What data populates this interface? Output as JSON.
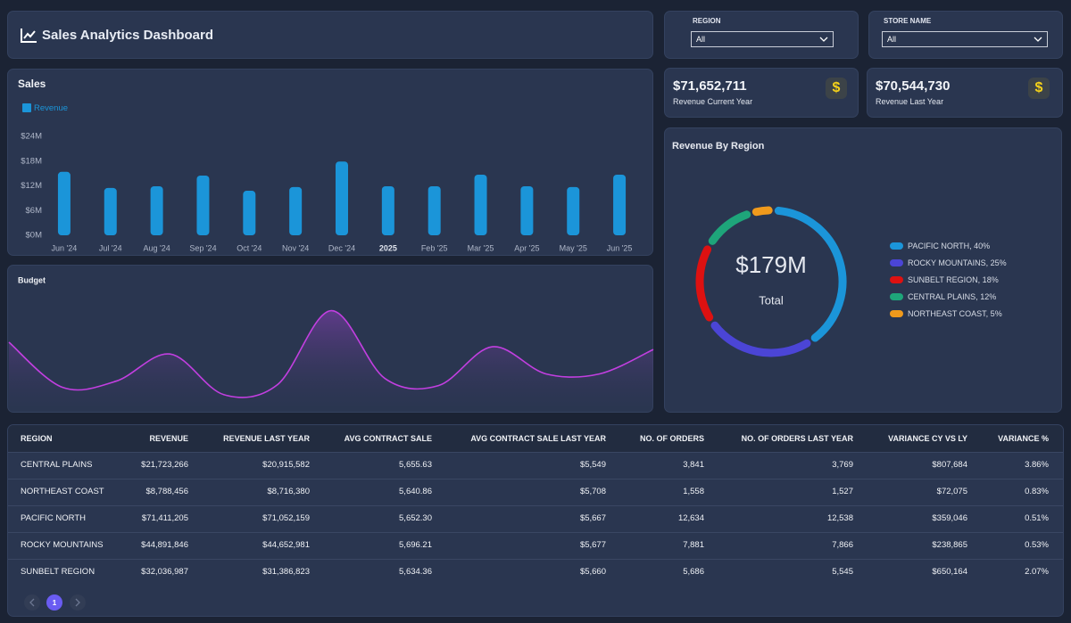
{
  "header": {
    "title": "Sales Analytics Dashboard"
  },
  "filters": [
    {
      "label": "REGION",
      "value": "All"
    },
    {
      "label": "STORE NAME",
      "value": "All"
    }
  ],
  "kpis": [
    {
      "value": "$71,652,711",
      "label": "Revenue Current Year",
      "icon": "$"
    },
    {
      "value": "$70,544,730",
      "label": "Revenue Last Year",
      "icon": "$"
    }
  ],
  "chart_data": [
    {
      "type": "bar",
      "title": "Sales",
      "categories": [
        "Jun '24",
        "Jul '24",
        "Aug '24",
        "Sep '24",
        "Oct '24",
        "Nov '24",
        "Dec '24",
        "2025",
        "Feb '25",
        "Mar '25",
        "Apr '25",
        "May '25",
        "Jun '25"
      ],
      "series": [
        {
          "name": "Revenue",
          "color": "#1b95d9",
          "values": [
            15400000,
            11500000,
            11900000,
            14500000,
            10800000,
            11700000,
            17900000,
            11900000,
            11900000,
            14700000,
            11900000,
            11700000,
            14700000
          ]
        }
      ],
      "ylim": [
        0,
        24000000
      ],
      "yticks": [
        {
          "value": 0,
          "label": "$0M"
        },
        {
          "value": 6000000,
          "label": "$6M"
        },
        {
          "value": 12000000,
          "label": "$12M"
        },
        {
          "value": 18000000,
          "label": "$18M"
        },
        {
          "value": 24000000,
          "label": "$24M"
        }
      ],
      "grid": false,
      "legend": "top-left"
    },
    {
      "type": "area",
      "title": "Budget",
      "color": "#c23fe0",
      "values": [
        77,
        27,
        34,
        64,
        19,
        30,
        112,
        37,
        29,
        72,
        42,
        42,
        69
      ],
      "ylim": [
        0,
        160
      ]
    },
    {
      "type": "pie",
      "title": "Revenue By Region",
      "center_value": "$179M",
      "center_label": "Total",
      "categories": [
        "PACIFIC NORTH, 40%",
        "ROCKY MOUNTAINS, 25%",
        "SUNBELT REGION, 18%",
        "CENTRAL PLAINS, 12%",
        "NORTHEAST COAST, 5%"
      ],
      "values": [
        40,
        25,
        18,
        12,
        5
      ],
      "colors": [
        "#1b95d9",
        "#4b45d6",
        "#dd1111",
        "#1ea57a",
        "#f09a1c"
      ],
      "legend": "right"
    }
  ],
  "table": {
    "columns": [
      "REGION",
      "REVENUE",
      "REVENUE LAST YEAR",
      "AVG CONTRACT SALE",
      "AVG CONTRACT SALE LAST YEAR",
      "NO. OF ORDERS",
      "NO. OF ORDERS LAST YEAR",
      "VARIANCE CY VS LY",
      "VARIANCE %"
    ],
    "rows": [
      [
        "CENTRAL PLAINS",
        "$21,723,266",
        "$20,915,582",
        "5,655.63",
        "$5,549",
        "3,841",
        "3,769",
        "$807,684",
        "3.86%"
      ],
      [
        "NORTHEAST COAST",
        "$8,788,456",
        "$8,716,380",
        "5,640.86",
        "$5,708",
        "1,558",
        "1,527",
        "$72,075",
        "0.83%"
      ],
      [
        "PACIFIC NORTH",
        "$71,411,205",
        "$71,052,159",
        "5,652.30",
        "$5,667",
        "12,634",
        "12,538",
        "$359,046",
        "0.51%"
      ],
      [
        "ROCKY MOUNTAINS",
        "$44,891,846",
        "$44,652,981",
        "5,696.21",
        "$5,677",
        "7,881",
        "7,866",
        "$238,865",
        "0.53%"
      ],
      [
        "SUNBELT REGION",
        "$32,036,987",
        "$31,386,823",
        "5,634.36",
        "$5,660",
        "5,686",
        "5,545",
        "$650,164",
        "2.07%"
      ]
    ]
  },
  "pagination": {
    "current_page": 1
  }
}
